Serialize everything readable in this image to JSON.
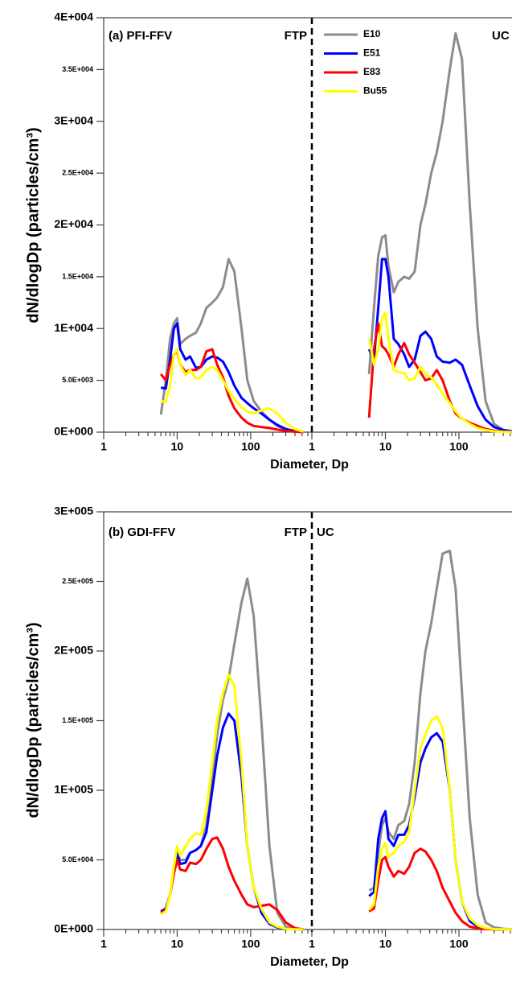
{
  "chart_data": [
    {
      "type": "line",
      "title": "(a) PFI-FFV",
      "xlabel": "Diameter, Dp",
      "ylabel": "dN/dlogDp (particles/cm³)",
      "xscale": "log",
      "legend": true,
      "ylim": [
        0,
        40000
      ],
      "yticks": [
        {
          "value": 0,
          "label": "0E+000"
        },
        {
          "value": 5000,
          "label": "5.0E+003"
        },
        {
          "value": 10000,
          "label": "1E+004"
        },
        {
          "value": 15000,
          "label": "1.5E+004"
        },
        {
          "value": 20000,
          "label": "2E+004"
        },
        {
          "value": 25000,
          "label": "2.5E+004"
        },
        {
          "value": 30000,
          "label": "3E+004"
        },
        {
          "value": 35000,
          "label": "3.5E+004"
        },
        {
          "value": 40000,
          "label": "4E+004"
        }
      ],
      "subplots": [
        {
          "label": "FTP",
          "xlim": [
            1,
            680
          ],
          "xticks": [
            1,
            10,
            100
          ],
          "x": [
            6,
            7,
            8,
            9,
            10,
            11,
            13,
            15,
            18,
            21,
            25,
            30,
            35,
            42,
            50,
            60,
            75,
            90,
            110,
            140,
            180,
            230,
            300,
            400,
            520
          ],
          "series": [
            {
              "name": "E10",
              "color": "#8c8c8c",
              "values": [
                1700,
                5000,
                9000,
                10500,
                11000,
                8500,
                9000,
                9300,
                9600,
                10500,
                12000,
                12500,
                13000,
                14000,
                16700,
                15500,
                10000,
                5000,
                3000,
                2000,
                1200,
                600,
                200,
                50,
                0
              ]
            },
            {
              "name": "E51",
              "color": "#0000ff",
              "values": [
                4300,
                4200,
                7000,
                10000,
                10500,
                8000,
                7000,
                7300,
                6200,
                6300,
                7000,
                7300,
                7200,
                6800,
                5800,
                4500,
                3300,
                2800,
                2300,
                1800,
                1200,
                700,
                300,
                100,
                30
              ]
            },
            {
              "name": "E83",
              "color": "#ff0000",
              "values": [
                5600,
                5000,
                6500,
                7500,
                7800,
                6500,
                5800,
                6000,
                6000,
                6300,
                7800,
                8000,
                6500,
                5300,
                3500,
                2300,
                1400,
                900,
                600,
                500,
                400,
                250,
                120,
                50,
                10
              ]
            },
            {
              "name": "Bu55",
              "color": "#ffff00",
              "values": [
                3000,
                2900,
                4500,
                7500,
                8000,
                6500,
                5500,
                6000,
                5200,
                5300,
                6000,
                6300,
                6000,
                5000,
                4000,
                3200,
                2400,
                2000,
                1800,
                2100,
                2300,
                1800,
                900,
                300,
                50
              ]
            }
          ]
        },
        {
          "label": "UC",
          "xlim": [
            1,
            540
          ],
          "xticks": [
            1,
            10,
            100
          ],
          "x": [
            6,
            7,
            8,
            9,
            10,
            11,
            13,
            15,
            18,
            21,
            25,
            30,
            35,
            42,
            50,
            60,
            75,
            90,
            110,
            140,
            180,
            230,
            300,
            400,
            520
          ],
          "series": [
            {
              "color": "#8c8c8c",
              "values": [
                5600,
                12000,
                17000,
                18800,
                19000,
                16000,
                13500,
                14500,
                15000,
                14800,
                15500,
                20000,
                22000,
                25000,
                27000,
                30000,
                35000,
                38500,
                36000,
                22000,
                10000,
                3000,
                800,
                200,
                50
              ]
            },
            {
              "color": "#0000ff",
              "values": [
                8000,
                7000,
                12000,
                16700,
                16700,
                15000,
                9000,
                8500,
                7500,
                6300,
                7000,
                9300,
                9700,
                9000,
                7300,
                6800,
                6700,
                7000,
                6500,
                4500,
                2500,
                1200,
                500,
                200,
                100
              ]
            },
            {
              "color": "#ff0000",
              "values": [
                1400,
                8000,
                10500,
                8300,
                8000,
                7500,
                6300,
                7500,
                8600,
                7500,
                6700,
                5800,
                5000,
                5200,
                6000,
                5000,
                3000,
                1800,
                1300,
                900,
                600,
                300,
                150,
                50,
                20
              ]
            },
            {
              "color": "#ffff00",
              "values": [
                9000,
                6500,
                8000,
                11000,
                11500,
                9000,
                6000,
                5800,
                5700,
                5000,
                5200,
                6300,
                5600,
                5300,
                4600,
                3700,
                2800,
                2000,
                1300,
                800,
                400,
                200,
                80,
                30,
                10
              ]
            }
          ]
        }
      ]
    },
    {
      "type": "line",
      "title": "(b) GDI-FFV",
      "xlabel": "Diameter, Dp",
      "ylabel": "dN/dlogDp (particles/cm³)",
      "xscale": "log",
      "legend": false,
      "ylim": [
        0,
        300000
      ],
      "yticks": [
        {
          "value": 0,
          "label": "0E+000"
        },
        {
          "value": 50000,
          "label": "5.0E+004"
        },
        {
          "value": 100000,
          "label": "1E+005"
        },
        {
          "value": 150000,
          "label": "1.5E+005"
        },
        {
          "value": 200000,
          "label": "2E+005"
        },
        {
          "value": 250000,
          "label": "2.5E+005"
        },
        {
          "value": 300000,
          "label": "3E+005"
        }
      ],
      "subplots": [
        {
          "label": "FTP",
          "xlim": [
            1,
            680
          ],
          "xticks": [
            1,
            10,
            100
          ],
          "x": [
            6,
            7,
            8,
            9,
            10,
            11,
            13,
            15,
            18,
            21,
            25,
            30,
            35,
            42,
            50,
            60,
            75,
            90,
            110,
            140,
            180,
            230,
            300,
            400,
            520
          ],
          "series": [
            {
              "color": "#8c8c8c",
              "values": [
                12000,
                15000,
                25000,
                40000,
                55000,
                50000,
                50000,
                55000,
                57000,
                60000,
                75000,
                110000,
                140000,
                165000,
                180000,
                205000,
                235000,
                252000,
                225000,
                150000,
                60000,
                12000,
                2000,
                500,
                100
              ]
            },
            {
              "color": "#0000ff",
              "values": [
                13000,
                15000,
                25000,
                42000,
                55000,
                47000,
                48000,
                55000,
                57000,
                60000,
                70000,
                100000,
                125000,
                145000,
                155000,
                150000,
                110000,
                60000,
                30000,
                12000,
                4000,
                1500,
                500,
                100,
                0
              ]
            },
            {
              "color": "#ff0000",
              "values": [
                12000,
                14000,
                25000,
                40000,
                50000,
                43000,
                42000,
                48000,
                47000,
                50000,
                58000,
                65000,
                66000,
                58000,
                45000,
                35000,
                25000,
                18000,
                16000,
                17000,
                18000,
                14000,
                5000,
                1000,
                200
              ]
            },
            {
              "color": "#ffff00",
              "values": [
                11000,
                13000,
                25000,
                45000,
                60000,
                53000,
                60000,
                65000,
                69000,
                68000,
                85000,
                120000,
                150000,
                170000,
                183000,
                175000,
                120000,
                60000,
                30000,
                15000,
                5000,
                2000,
                500,
                100,
                0
              ]
            }
          ]
        },
        {
          "label": "UC",
          "xlim": [
            1,
            540
          ],
          "xticks": [
            1,
            10,
            100
          ],
          "x": [
            6,
            7,
            8,
            9,
            10,
            11,
            13,
            15,
            18,
            21,
            25,
            30,
            35,
            42,
            50,
            60,
            75,
            90,
            110,
            140,
            180,
            230,
            300,
            400,
            520
          ],
          "series": [
            {
              "color": "#8c8c8c",
              "values": [
                28000,
                30000,
                55000,
                75000,
                80000,
                70000,
                65000,
                75000,
                78000,
                90000,
                120000,
                170000,
                200000,
                220000,
                245000,
                270000,
                272000,
                245000,
                170000,
                80000,
                25000,
                5000,
                1500,
                500,
                100
              ]
            },
            {
              "color": "#0000ff",
              "values": [
                24000,
                27000,
                65000,
                80000,
                85000,
                65000,
                60000,
                68000,
                68000,
                75000,
                95000,
                120000,
                130000,
                138000,
                141000,
                135000,
                100000,
                50000,
                20000,
                6000,
                2000,
                500,
                200,
                0,
                0
              ]
            },
            {
              "color": "#ff0000",
              "values": [
                13000,
                15000,
                35000,
                50000,
                52000,
                45000,
                38000,
                42000,
                40000,
                45000,
                55000,
                58000,
                56000,
                50000,
                42000,
                30000,
                20000,
                12000,
                6000,
                2000,
                800,
                300,
                100,
                0,
                0
              ]
            },
            {
              "color": "#ffff00",
              "values": [
                14000,
                18000,
                45000,
                58000,
                62000,
                52000,
                55000,
                60000,
                63000,
                70000,
                100000,
                130000,
                140000,
                150000,
                153000,
                145000,
                100000,
                50000,
                20000,
                8000,
                3000,
                1000,
                300,
                100,
                0
              ]
            }
          ]
        }
      ]
    }
  ]
}
